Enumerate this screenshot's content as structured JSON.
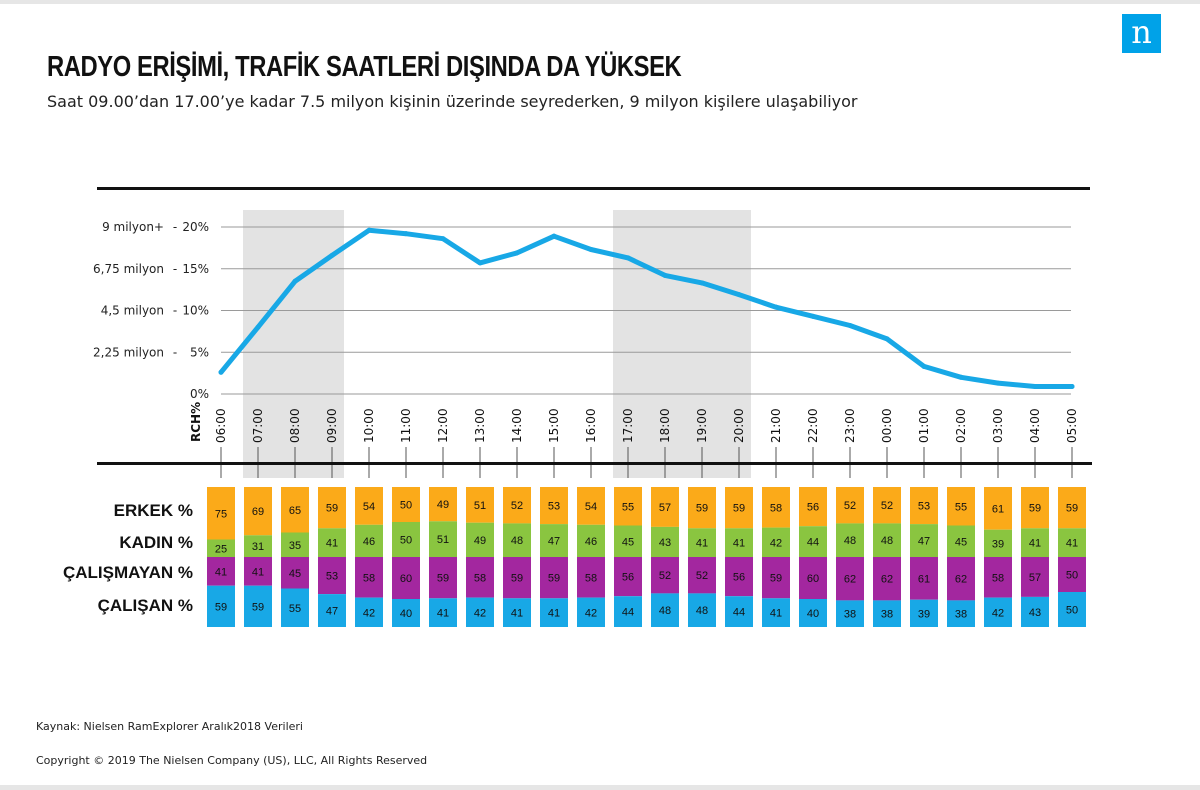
{
  "header": {
    "title": "RADYO ERİŞİMİ, TRAFİK SAATLERİ DIŞINDA DA YÜKSEK",
    "subtitle": "Saat 09.00’dan 17.00’ye kadar 7.5 milyon kişinin üzerinde seyrederken, 9 milyon kişilere ulaşabiliyor",
    "logo_letter": "n"
  },
  "footer": {
    "source": "Kaynak: Nielsen RamExplorer Aralık2018 Verileri",
    "copyright": "Copyright © 2019 The Nielsen Company (US), LLC, All Rights Reserved"
  },
  "colors": {
    "line": "#18a8e6",
    "shade": "#e3e3e3",
    "grid": "#9a9a9a",
    "erkek": "#fbaa19",
    "kadin": "#8ac540",
    "calismayan": "#a3279f",
    "calisan": "#18a8e6"
  },
  "chart_data": [
    {
      "type": "line",
      "x": [
        "06:00",
        "07:00",
        "08:00",
        "09:00",
        "10:00",
        "11:00",
        "12:00",
        "13:00",
        "14:00",
        "15:00",
        "16:00",
        "17:00",
        "18:00",
        "19:00",
        "20:00",
        "21:00",
        "22:00",
        "23:00",
        "00:00",
        "01:00",
        "02:00",
        "03:00",
        "04:00",
        "05:00"
      ],
      "series": [
        {
          "values": [
            2.6,
            8.0,
            13.5,
            16.6,
            19.6,
            19.2,
            18.6,
            15.7,
            16.9,
            18.9,
            17.3,
            16.3,
            14.2,
            13.3,
            11.9,
            10.4,
            9.3,
            8.2,
            6.6,
            3.3,
            2.0,
            1.3,
            0.9,
            0.9
          ]
        }
      ],
      "ylabel": "RCH%",
      "ylim": [
        0,
        20
      ],
      "yticks": [
        "0%",
        "5%",
        "10%",
        "15%",
        "20%"
      ],
      "yticks_secondary": [
        "",
        "2,25 milyon",
        "4,5 milyon",
        "6,75 milyon",
        "9 milyon+"
      ],
      "shaded_ranges": [
        [
          "07:00",
          "09:00"
        ],
        [
          "17:00",
          "20:00"
        ]
      ],
      "grid": true
    },
    {
      "type": "bar",
      "stacked": true,
      "categories": [
        "06:00",
        "07:00",
        "08:00",
        "09:00",
        "10:00",
        "11:00",
        "12:00",
        "13:00",
        "14:00",
        "15:00",
        "16:00",
        "17:00",
        "18:00",
        "19:00",
        "20:00",
        "21:00",
        "22:00",
        "23:00",
        "00:00",
        "01:00",
        "02:00",
        "03:00",
        "04:00",
        "05:00"
      ],
      "groups": [
        {
          "series": [
            {
              "name": "ERKEK %",
              "values": [
                75,
                69,
                65,
                59,
                54,
                50,
                49,
                51,
                52,
                53,
                54,
                55,
                57,
                59,
                59,
                58,
                56,
                52,
                52,
                53,
                55,
                61,
                59,
                59
              ]
            },
            {
              "name": "KADIN %",
              "values": [
                25,
                31,
                35,
                41,
                46,
                50,
                51,
                49,
                48,
                47,
                46,
                45,
                43,
                41,
                41,
                42,
                44,
                48,
                48,
                47,
                45,
                39,
                41,
                41
              ]
            }
          ]
        },
        {
          "series": [
            {
              "name": "ÇALIŞMAYAN %",
              "values": [
                41,
                41,
                45,
                53,
                58,
                60,
                59,
                58,
                59,
                59,
                58,
                56,
                52,
                52,
                56,
                59,
                60,
                62,
                62,
                61,
                62,
                58,
                57,
                50
              ]
            },
            {
              "name": "ÇALIŞAN %",
              "values": [
                59,
                59,
                55,
                47,
                42,
                40,
                41,
                42,
                41,
                41,
                42,
                44,
                48,
                48,
                44,
                41,
                40,
                38,
                38,
                39,
                38,
                42,
                43,
                50
              ]
            }
          ]
        }
      ]
    }
  ]
}
